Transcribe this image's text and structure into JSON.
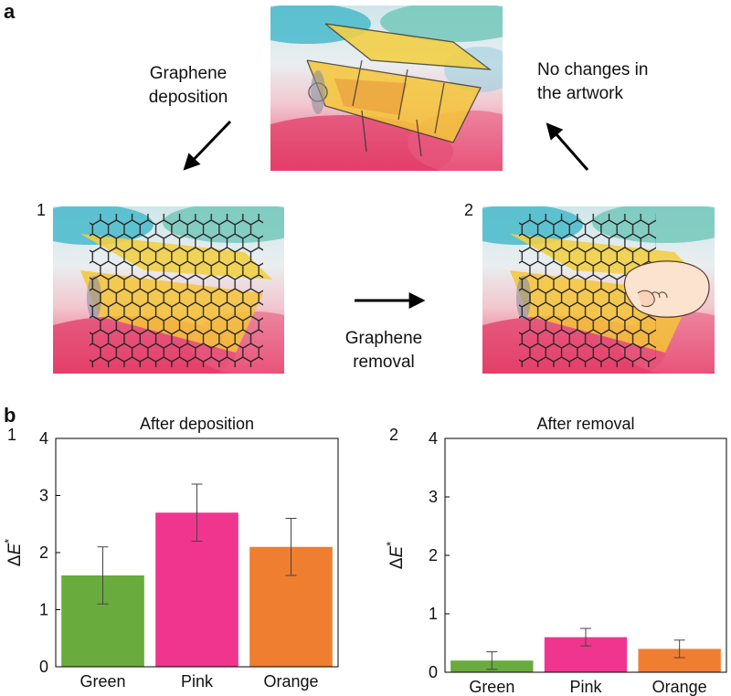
{
  "panel_a": {
    "letter": "a",
    "caption_deposition": [
      "Graphene",
      "deposition"
    ],
    "caption_no_changes": [
      "No changes in",
      "the artwork"
    ],
    "caption_removal": [
      "Graphene",
      "removal"
    ],
    "label_1": "1",
    "label_2": "2"
  },
  "panel_b": {
    "letter": "b"
  },
  "colors": {
    "green": "#6aab3d",
    "pink": "#f0358f",
    "orange": "#f07e30"
  },
  "chart_data": [
    {
      "type": "bar",
      "panel_number": "1",
      "title": "After deposition",
      "ylabel_symbol": "ΔE",
      "ylabel_sup": "*",
      "categories": [
        "Green",
        "Pink",
        "Orange"
      ],
      "values": [
        1.6,
        2.7,
        2.1
      ],
      "errors": [
        0.5,
        0.5,
        0.5
      ],
      "ylim": [
        0,
        4
      ],
      "yticks": [
        0,
        1,
        2,
        3,
        4
      ],
      "ytick_labels": [
        "0",
        "1",
        "2",
        "3",
        "4"
      ],
      "bar_colors": [
        "#6aab3d",
        "#f0358f",
        "#f07e30"
      ]
    },
    {
      "type": "bar",
      "panel_number": "2",
      "title": "After removal",
      "ylabel_symbol": "ΔE",
      "ylabel_sup": "*",
      "categories": [
        "Green",
        "Pink",
        "Orange"
      ],
      "values": [
        0.2,
        0.6,
        0.4
      ],
      "errors": [
        0.15,
        0.15,
        0.15
      ],
      "ylim": [
        0,
        4
      ],
      "yticks": [
        0,
        1,
        2,
        3,
        4
      ],
      "ytick_labels": [
        "0",
        "1",
        "2",
        "3",
        "4"
      ],
      "bar_colors": [
        "#6aab3d",
        "#f0358f",
        "#f07e30"
      ]
    }
  ]
}
